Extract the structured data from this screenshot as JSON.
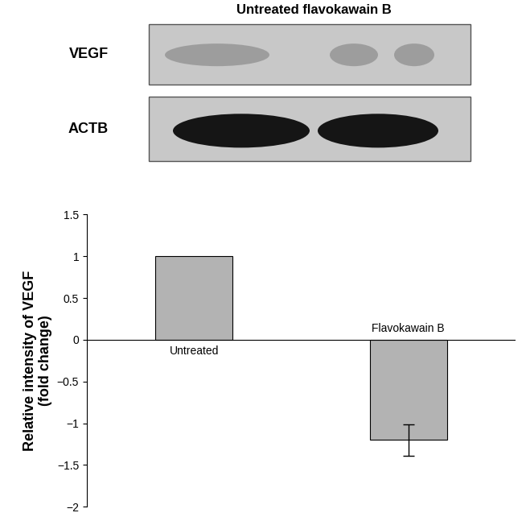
{
  "chart_data": {
    "type": "bar",
    "y_label": "Relative intensity of VEGF\n(fold change)",
    "categories": [
      "Untreated",
      "Flavokawain B"
    ],
    "values": [
      1,
      -1.2
    ],
    "errors": [
      null,
      0.19
    ],
    "color": "#b3b3b3",
    "ylim": [
      -2,
      1.5
    ],
    "yticks": [
      {
        "value": -2,
        "label": "−2"
      },
      {
        "value": -1.5,
        "label": "−1.5"
      },
      {
        "value": -1,
        "label": "−1"
      },
      {
        "value": -0.5,
        "label": "−0.5"
      },
      0,
      0.5,
      1,
      1.5
    ],
    "tick_labels": "y",
    "grid": false
  },
  "blot": {
    "title": "Untreated flavokawain B",
    "bands": [
      "VEGF",
      "ACTB"
    ]
  }
}
